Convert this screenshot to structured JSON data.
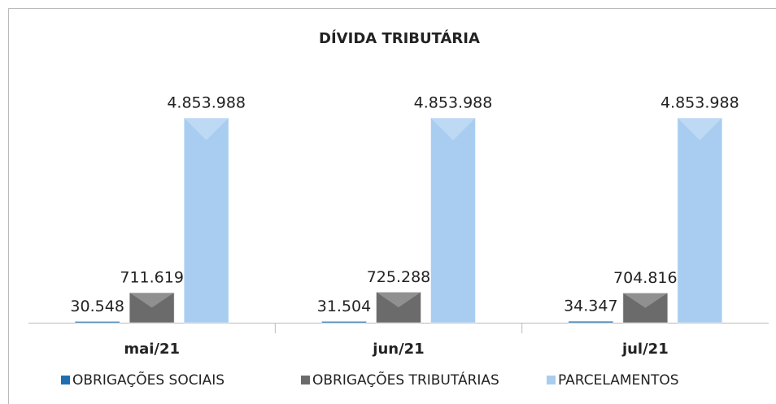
{
  "chart_data": {
    "type": "bar",
    "title": "DÍVIDA TRIBUTÁRIA",
    "categories": [
      "mai/21",
      "jun/21",
      "jul/21"
    ],
    "series": [
      {
        "name": "OBRIGAÇÕES SOCIAIS",
        "color": "#1f6fb0",
        "values": [
          30548,
          31504,
          34347
        ],
        "value_labels": [
          "30.548",
          "31.504",
          "34.347"
        ]
      },
      {
        "name": "OBRIGAÇÕES TRIBUTÁRIAS",
        "color": "#6b6b6b",
        "values": [
          711619,
          725288,
          704816
        ],
        "value_labels": [
          "711.619",
          "725.288",
          "704.816"
        ]
      },
      {
        "name": "PARCELAMENTOS",
        "color": "#a9cdf0",
        "values": [
          4853988,
          4853988,
          4853988
        ],
        "value_labels": [
          "4.853.988",
          "4.853.988",
          "4.853.988"
        ]
      }
    ]
  }
}
